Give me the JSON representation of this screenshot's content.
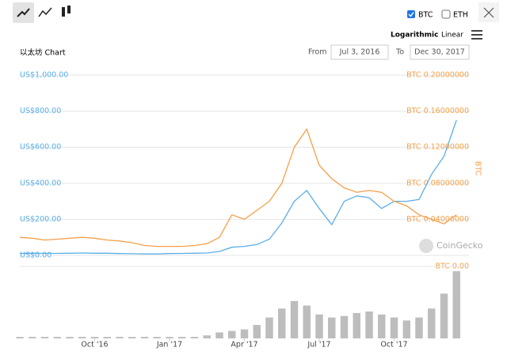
{
  "controls": {
    "currencies": [
      {
        "label": "BTC",
        "checked": true
      },
      {
        "label": "ETH",
        "checked": false
      }
    ],
    "scales": [
      "Logarithmic",
      "Linear"
    ],
    "from_label": "From",
    "from": "Jul 3, 2016",
    "to_label": "To",
    "to": "Dec 30, 2017"
  },
  "chart_data": {
    "type": "line",
    "title": "以太坊 Chart",
    "y2label": "BTC",
    "watermark": "CoinGecko",
    "x": [
      2016.5,
      2016.5417,
      2016.5833,
      2016.625,
      2016.6667,
      2016.7083,
      2016.75,
      2016.7917,
      2016.8333,
      2016.875,
      2016.9167,
      2016.9583,
      2017.0,
      2017.0417,
      2017.0833,
      2017.125,
      2017.1667,
      2017.2083,
      2017.25,
      2017.2917,
      2017.3333,
      2017.375,
      2017.4167,
      2017.4583,
      2017.5,
      2017.5417,
      2017.5833,
      2017.625,
      2017.6667,
      2017.7083,
      2017.75,
      2017.7917,
      2017.8333,
      2017.875,
      2017.9167,
      2017.9583
    ],
    "xlim": [
      2016.5,
      2018.0
    ],
    "xticks": [
      {
        "value": 2016.75,
        "label": "Oct '16"
      },
      {
        "value": 2017.0,
        "label": "Jan '17"
      },
      {
        "value": 2017.25,
        "label": "Apr '17"
      },
      {
        "value": 2017.5,
        "label": "Jul '17"
      },
      {
        "value": 2017.75,
        "label": "Oct '17"
      }
    ],
    "ylim": [
      0,
      1000
    ],
    "yticks": [
      {
        "value": 0,
        "label": "US$0.00"
      },
      {
        "value": 200,
        "label": "US$200.00"
      },
      {
        "value": 400,
        "label": "US$400.00"
      },
      {
        "value": 600,
        "label": "US$600.00"
      },
      {
        "value": 800,
        "label": "US$800.00"
      },
      {
        "value": 1000,
        "label": "US$1,000.00"
      }
    ],
    "y2lim": [
      0,
      0.2
    ],
    "y2ticks": [
      {
        "value": 0,
        "label": "BTC 0.00"
      },
      {
        "value": 0.04,
        "label": "BTC 0.04000000"
      },
      {
        "value": 0.08,
        "label": "BTC 0.08000000"
      },
      {
        "value": 0.12,
        "label": "BTC 0.12000000"
      },
      {
        "value": 0.16,
        "label": "BTC 0.16000000"
      },
      {
        "value": 0.2,
        "label": "BTC 0.20000000"
      }
    ],
    "grid": true,
    "series": [
      {
        "color": "#5aaee8",
        "values": [
          11,
          12,
          11,
          11,
          12,
          13,
          12,
          12,
          10,
          9,
          8,
          8,
          10,
          11,
          12,
          13,
          22,
          45,
          50,
          60,
          90,
          180,
          300,
          360,
          260,
          170,
          300,
          330,
          320,
          260,
          300,
          300,
          310,
          450,
          550,
          750
        ]
      },
      {
        "color": "#f5a04a",
        "axis": "y2",
        "values": [
          0.02,
          0.019,
          0.017,
          0.018,
          0.019,
          0.02,
          0.019,
          0.017,
          0.016,
          0.014,
          0.011,
          0.01,
          0.01,
          0.01,
          0.011,
          0.013,
          0.02,
          0.045,
          0.04,
          0.05,
          0.06,
          0.08,
          0.12,
          0.14,
          0.1,
          0.085,
          0.075,
          0.07,
          0.072,
          0.07,
          0.06,
          0.055,
          0.045,
          0.04,
          0.035,
          0.045
        ]
      }
    ],
    "volume": {
      "color": "#bdbdbd",
      "values": [
        1,
        1,
        1,
        1,
        1,
        1,
        1,
        1,
        1,
        1,
        1,
        1,
        1,
        1,
        1,
        2,
        4,
        5,
        6,
        9,
        14,
        20,
        25,
        22,
        16,
        14,
        15,
        17,
        18,
        16,
        14,
        12,
        14,
        20,
        30,
        45
      ]
    }
  }
}
